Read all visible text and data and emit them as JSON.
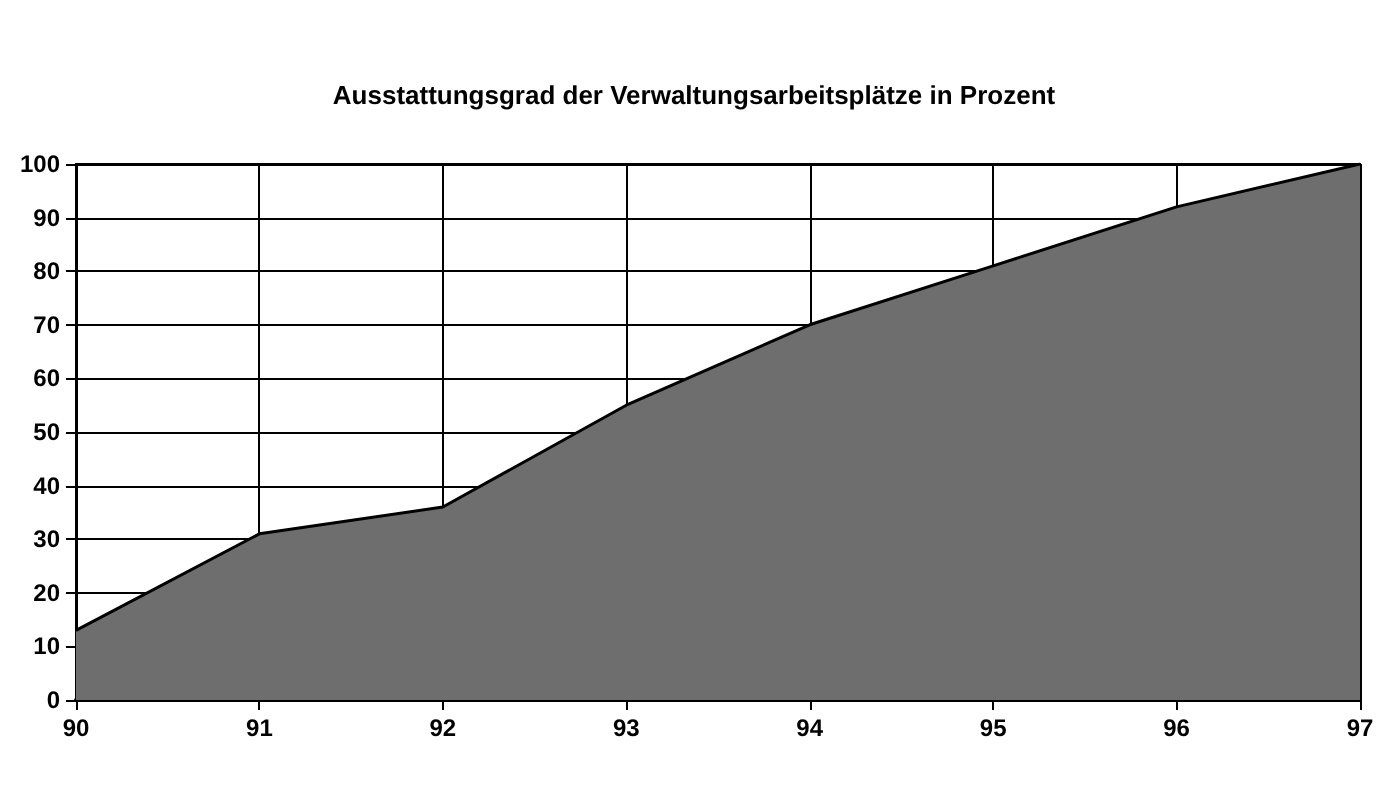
{
  "chart_data": {
    "type": "area",
    "title": "Ausstattungsgrad der Verwaltungsarbeitsplätze in Prozent",
    "x": [
      90,
      91,
      92,
      93,
      94,
      95,
      96,
      97
    ],
    "series": [
      {
        "color": "#6e6e6e",
        "values": [
          13,
          31,
          36,
          55,
          70,
          81,
          92,
          100
        ]
      }
    ],
    "xlim": [
      90,
      97
    ],
    "xticks": [
      90,
      91,
      92,
      93,
      94,
      95,
      96,
      97
    ],
    "ylim": [
      0,
      100
    ],
    "yticks": [
      0,
      10,
      20,
      30,
      40,
      50,
      60,
      70,
      80,
      90,
      100
    ],
    "grid": true
  }
}
